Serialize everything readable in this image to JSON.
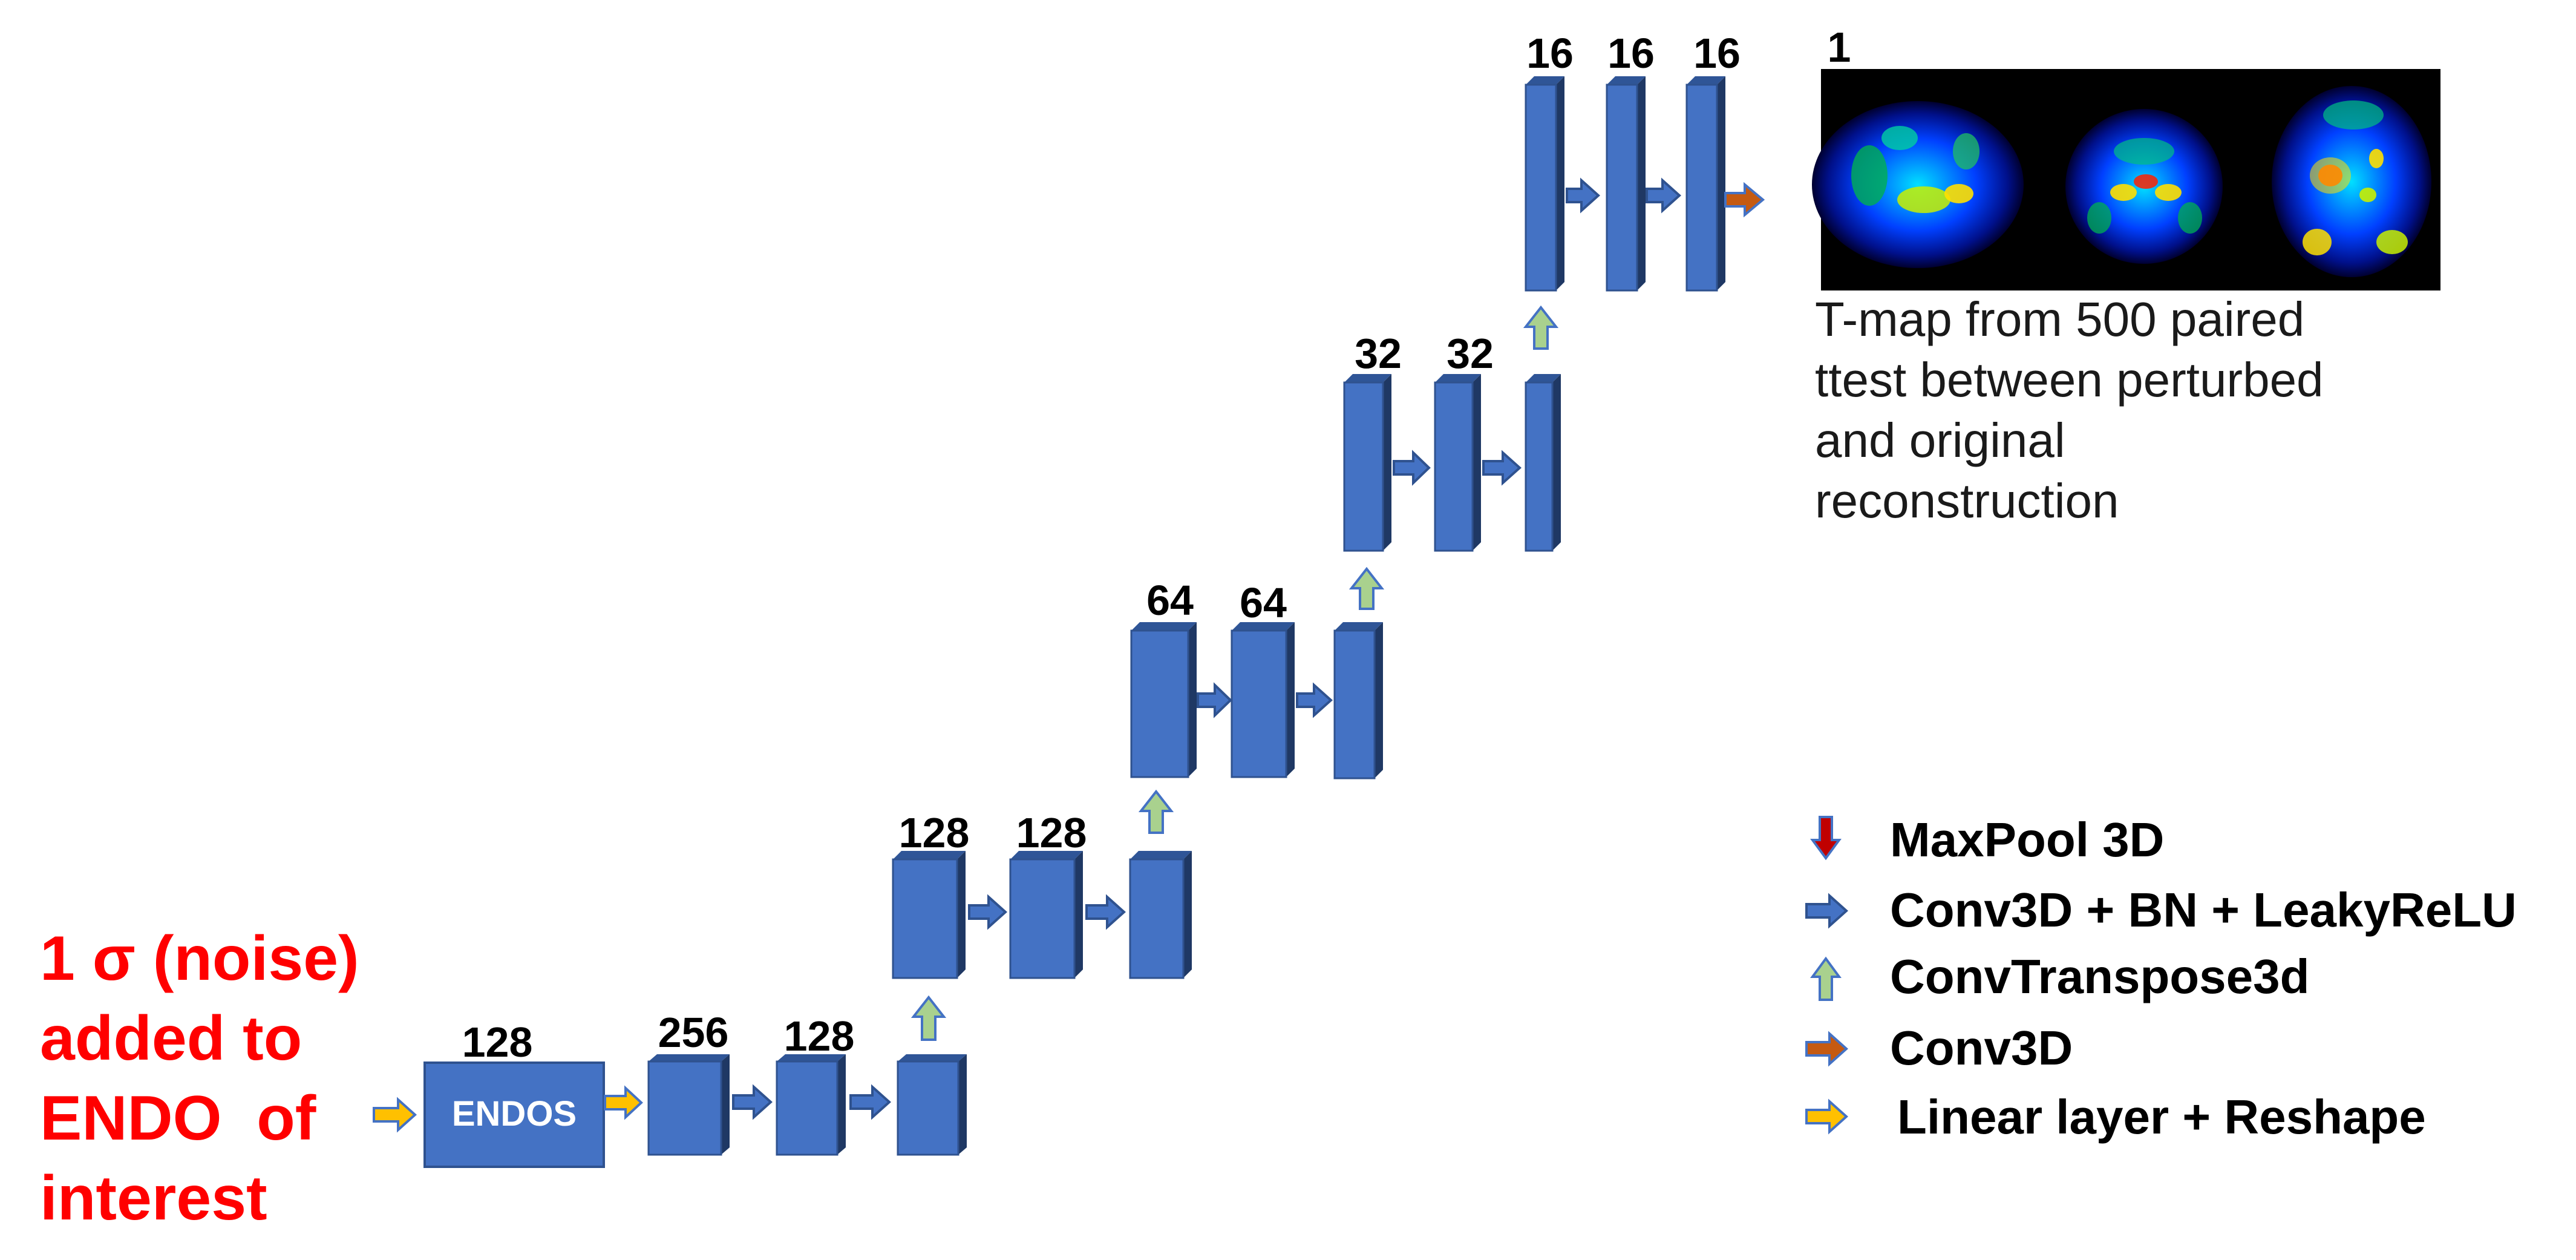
{
  "noise_label": {
    "lines": [
      "1 σ (noise)",
      "added to",
      "ENDO  of",
      "interest"
    ],
    "color": "#ff0000"
  },
  "endos_box_label": "ENDOS",
  "channel_labels": {
    "endos": "128",
    "enc_1": "256",
    "enc_2": "128",
    "l1_a": "128",
    "l1_b": "128",
    "l2_a": "64",
    "l2_b": "64",
    "l3_a": "32",
    "l3_b": "32",
    "l4_a": "16",
    "l4_b": "16",
    "l4_c": "16",
    "output": "1"
  },
  "caption": {
    "lines": [
      "T-map from 500 paired",
      "ttest between perturbed",
      "and original",
      "reconstruction"
    ]
  },
  "legend": [
    {
      "icon": "maxpool-arrow-icon",
      "label": "MaxPool 3D",
      "color": "#c00000"
    },
    {
      "icon": "conv-arrow-icon",
      "label": "Conv3D + BN + LeakyReLU",
      "color": "#4472c4"
    },
    {
      "icon": "convtranspose-arrow-icon",
      "label": "ConvTranspose3d",
      "color": "#a9d18e"
    },
    {
      "icon": "conv3d-arrow-icon",
      "label": "Conv3D",
      "color": "#c55a11"
    },
    {
      "icon": "linear-arrow-icon",
      "label": "Linear layer + Reshape",
      "color": "#ffc000"
    }
  ],
  "colors": {
    "block_front": "#4472c4",
    "block_side": "#1f3864",
    "block_top": "#2f5597",
    "block_border": "#2f528f",
    "conv_arrow": "#4472c4",
    "up_arrow": "#a9d18e",
    "linear_arrow": "#ffc000",
    "conv3d_arrow": "#c55a11",
    "maxpool_arrow": "#c00000"
  }
}
